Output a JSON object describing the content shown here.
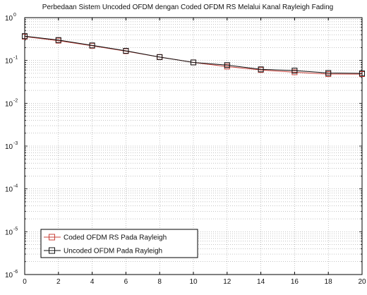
{
  "chart_data": {
    "type": "line",
    "title": "Perbedaan Sistem Uncoded OFDM dengan Coded OFDM RS Melalui Kanal Rayleigh Fading",
    "xlabel": "",
    "ylabel": "",
    "x": [
      0,
      2,
      4,
      6,
      8,
      10,
      12,
      14,
      16,
      18,
      20
    ],
    "xlim": [
      0,
      20
    ],
    "xticks": [
      "0",
      "2",
      "4",
      "6",
      "8",
      "10",
      "12",
      "14",
      "16",
      "18",
      "20"
    ],
    "ylim": [
      1e-06,
      1
    ],
    "yscale": "log",
    "yticks": [
      {
        "base": "10",
        "exp": "0"
      },
      {
        "base": "10",
        "exp": "-1"
      },
      {
        "base": "10",
        "exp": "-2"
      },
      {
        "base": "10",
        "exp": "-3"
      },
      {
        "base": "10",
        "exp": "-4"
      },
      {
        "base": "10",
        "exp": "-5"
      },
      {
        "base": "10",
        "exp": "-6"
      }
    ],
    "grid": true,
    "legend_position": "bottom-left",
    "series": [
      {
        "name": "Coded OFDM RS Pada Rayleigh",
        "color": "#c8413a",
        "marker": "square",
        "values": [
          0.36,
          0.29,
          0.22,
          0.165,
          0.12,
          0.09,
          0.072,
          0.06,
          0.053,
          0.048,
          0.048
        ]
      },
      {
        "name": "Uncoded OFDM Pada Rayleigh",
        "color": "#111111",
        "marker": "square",
        "values": [
          0.37,
          0.3,
          0.225,
          0.168,
          0.12,
          0.09,
          0.078,
          0.062,
          0.058,
          0.051,
          0.05
        ]
      }
    ]
  }
}
